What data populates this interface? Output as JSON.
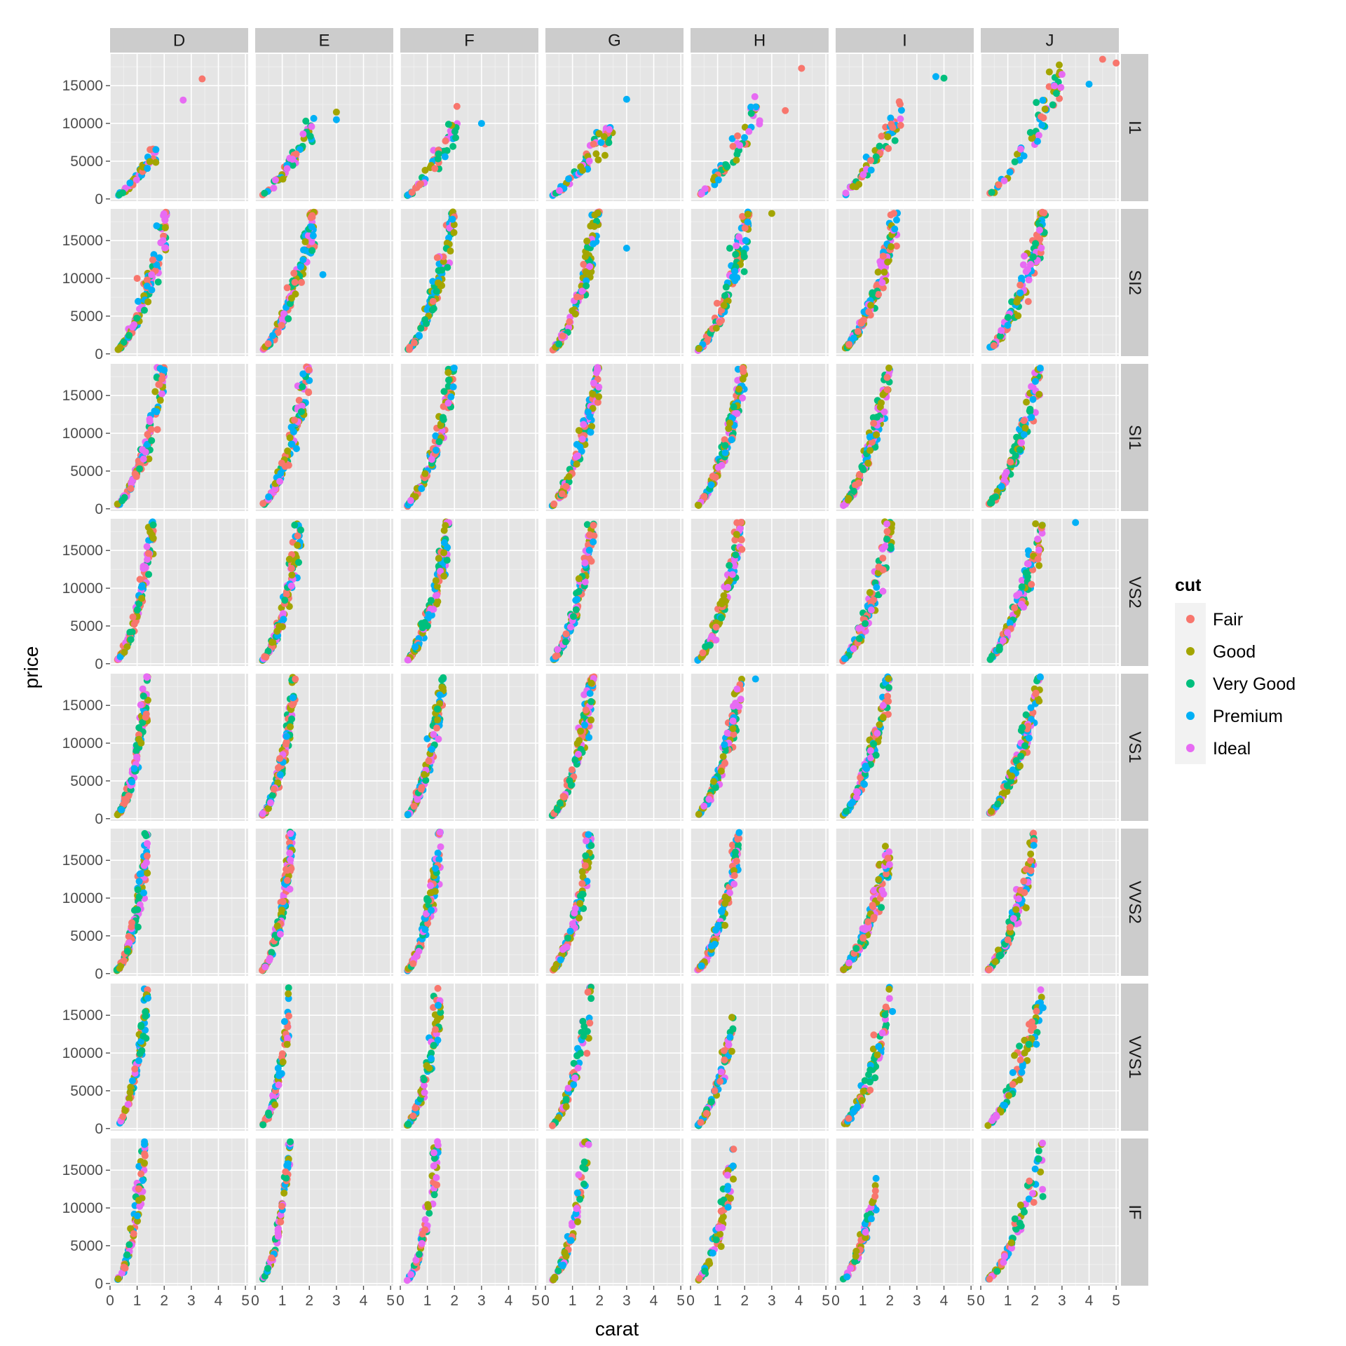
{
  "chart_data": {
    "type": "scatter",
    "faceting": "grid",
    "xlabel": "carat",
    "ylabel": "price",
    "xlim": [
      0,
      5.1
    ],
    "ylim": [
      -300,
      19200
    ],
    "x_ticks": [
      0,
      1,
      2,
      3,
      4,
      5
    ],
    "x_tick_labels": [
      "0",
      "1",
      "2",
      "3",
      "4",
      "5"
    ],
    "y_ticks": [
      0,
      5000,
      10000,
      15000
    ],
    "y_tick_labels": [
      "0",
      "5000",
      "10000",
      "15000"
    ],
    "grid": true,
    "column_facets": [
      "D",
      "E",
      "F",
      "G",
      "H",
      "I",
      "J"
    ],
    "row_facets": [
      "I1",
      "SI2",
      "SI1",
      "VS2",
      "VS1",
      "VVS2",
      "VVS1",
      "IF"
    ],
    "legend": {
      "title": "cut",
      "position": "right",
      "entries": [
        {
          "label": "Fair",
          "color": "#F8766D"
        },
        {
          "label": "Good",
          "color": "#A3A500"
        },
        {
          "label": "Very Good",
          "color": "#00BF7D"
        },
        {
          "label": "Premium",
          "color": "#00B0F6"
        },
        {
          "label": "Ideal",
          "color": "#E76BF3"
        }
      ]
    },
    "facet_trends": {
      "description_of_values": "approximate price-vs-carat trend per facet; keys are clarity rows, arrays follow color columns D..J as [max_carat_of_main_cluster, max_price]",
      "I1": [
        [
          1.7,
          6200
        ],
        [
          2.2,
          10500
        ],
        [
          2.1,
          10300
        ],
        [
          2.5,
          10000
        ],
        [
          2.6,
          12000
        ],
        [
          2.5,
          12000
        ],
        [
          3.0,
          16500
        ]
      ],
      "SI2": [
        [
          2.1,
          18600
        ],
        [
          2.2,
          18500
        ],
        [
          2.0,
          18700
        ],
        [
          2.0,
          18700
        ],
        [
          2.2,
          18600
        ],
        [
          2.3,
          18600
        ],
        [
          2.4,
          18400
        ]
      ],
      "SI1": [
        [
          2.0,
          18500
        ],
        [
          2.0,
          18500
        ],
        [
          2.0,
          18500
        ],
        [
          2.0,
          18600
        ],
        [
          2.0,
          18600
        ],
        [
          2.0,
          18500
        ],
        [
          2.2,
          18500
        ]
      ],
      "VS2": [
        [
          1.6,
          18300
        ],
        [
          1.7,
          18500
        ],
        [
          1.8,
          18600
        ],
        [
          1.8,
          18600
        ],
        [
          1.9,
          18500
        ],
        [
          2.1,
          18500
        ],
        [
          2.3,
          18600
        ]
      ],
      "VS1": [
        [
          1.4,
          17900
        ],
        [
          1.5,
          18500
        ],
        [
          1.6,
          18600
        ],
        [
          1.8,
          18500
        ],
        [
          1.9,
          18400
        ],
        [
          2.0,
          18600
        ],
        [
          2.2,
          18500
        ]
      ],
      "VVS2": [
        [
          1.4,
          17500
        ],
        [
          1.4,
          18100
        ],
        [
          1.5,
          18500
        ],
        [
          1.7,
          18600
        ],
        [
          1.8,
          17300
        ],
        [
          2.0,
          16000
        ],
        [
          2.0,
          17000
        ]
      ],
      "VVS1": [
        [
          1.4,
          18000
        ],
        [
          1.3,
          16300
        ],
        [
          1.5,
          18500
        ],
        [
          1.7,
          18400
        ],
        [
          1.6,
          14600
        ],
        [
          2.0,
          15700
        ],
        [
          2.3,
          17800
        ]
      ],
      "IF": [
        [
          1.3,
          18500
        ],
        [
          1.3,
          18700
        ],
        [
          1.4,
          18500
        ],
        [
          1.6,
          18800
        ],
        [
          1.6,
          16300
        ],
        [
          1.5,
          12700
        ],
        [
          2.3,
          18600
        ]
      ]
    },
    "notable_points": [
      {
        "facet": [
          "D",
          "I1"
        ],
        "carat": 3.4,
        "price": 15900,
        "cut": "Fair"
      },
      {
        "facet": [
          "D",
          "I1"
        ],
        "carat": 2.7,
        "price": 13100,
        "cut": "Ideal"
      },
      {
        "facet": [
          "E",
          "I1"
        ],
        "carat": 3.0,
        "price": 11500,
        "cut": "Good"
      },
      {
        "facet": [
          "E",
          "I1"
        ],
        "carat": 3.0,
        "price": 10500,
        "cut": "Premium"
      },
      {
        "facet": [
          "F",
          "I1"
        ],
        "carat": 3.0,
        "price": 10000,
        "cut": "Premium"
      },
      {
        "facet": [
          "G",
          "I1"
        ],
        "carat": 3.0,
        "price": 13200,
        "cut": "Premium"
      },
      {
        "facet": [
          "H",
          "I1"
        ],
        "carat": 4.1,
        "price": 17300,
        "cut": "Fair"
      },
      {
        "facet": [
          "H",
          "I1"
        ],
        "carat": 3.5,
        "price": 11700,
        "cut": "Fair"
      },
      {
        "facet": [
          "I",
          "I1"
        ],
        "carat": 3.7,
        "price": 16200,
        "cut": "Premium"
      },
      {
        "facet": [
          "I",
          "I1"
        ],
        "carat": 4.0,
        "price": 16000,
        "cut": "Very Good"
      },
      {
        "facet": [
          "J",
          "I1"
        ],
        "carat": 4.5,
        "price": 18500,
        "cut": "Fair"
      },
      {
        "facet": [
          "J",
          "I1"
        ],
        "carat": 5.0,
        "price": 18000,
        "cut": "Fair"
      },
      {
        "facet": [
          "J",
          "I1"
        ],
        "carat": 4.0,
        "price": 15200,
        "cut": "Premium"
      },
      {
        "facet": [
          "J",
          "I1"
        ],
        "carat": 3.0,
        "price": 16500,
        "cut": "Ideal"
      },
      {
        "facet": [
          "D",
          "SI2"
        ],
        "carat": 1.0,
        "price": 10000,
        "cut": "Fair"
      },
      {
        "facet": [
          "E",
          "SI2"
        ],
        "carat": 2.5,
        "price": 10500,
        "cut": "Premium"
      },
      {
        "facet": [
          "G",
          "SI2"
        ],
        "carat": 3.0,
        "price": 14000,
        "cut": "Premium"
      },
      {
        "facet": [
          "H",
          "SI2"
        ],
        "carat": 3.0,
        "price": 18600,
        "cut": "Good"
      },
      {
        "facet": [
          "J",
          "VS2"
        ],
        "carat": 3.5,
        "price": 18700,
        "cut": "Premium"
      },
      {
        "facet": [
          "H",
          "VS1"
        ],
        "carat": 2.4,
        "price": 18500,
        "cut": "Premium"
      },
      {
        "facet": [
          "I",
          "VVS1"
        ],
        "carat": 2.1,
        "price": 15500,
        "cut": "Premium"
      },
      {
        "facet": [
          "J",
          "VVS1"
        ],
        "carat": 2.3,
        "price": 16000,
        "cut": "Premium"
      }
    ]
  }
}
